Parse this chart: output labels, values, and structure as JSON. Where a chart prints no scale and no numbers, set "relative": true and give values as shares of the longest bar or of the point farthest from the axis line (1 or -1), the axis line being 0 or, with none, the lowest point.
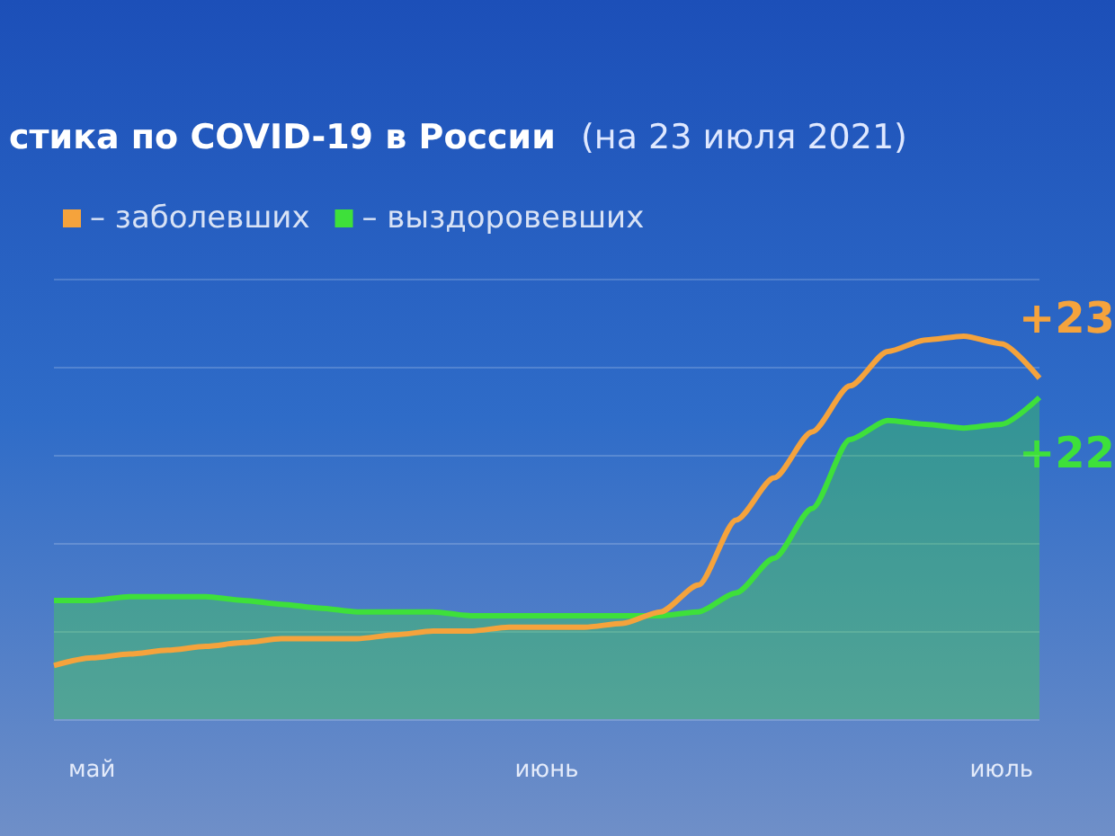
{
  "chart_data": {
    "type": "line",
    "title": "стика по COVID-19 в России",
    "subtitle": "(на 23 июля 2021)",
    "relative": true,
    "grid": "y",
    "legend": "top left",
    "categories": [
      null,
      "май",
      null,
      null,
      null,
      null,
      null,
      null,
      null,
      null,
      null,
      null,
      null,
      "июнь",
      null,
      null,
      null,
      null,
      null,
      null,
      null,
      null,
      null,
      null,
      null,
      "июль",
      null
    ],
    "series": [
      {
        "name": "– заболевших",
        "type": "line",
        "color": "#f5a33c",
        "values": [
          0.14,
          0.16,
          0.17,
          0.18,
          0.19,
          0.2,
          0.21,
          0.21,
          0.21,
          0.22,
          0.23,
          0.23,
          0.24,
          0.24,
          0.24,
          0.25,
          0.28,
          0.35,
          0.52,
          0.63,
          0.75,
          0.87,
          0.96,
          0.99,
          1.0,
          0.98,
          0.89
        ]
      },
      {
        "name": "– выздоровевших",
        "type": "area",
        "color": "#3ee03a",
        "values": [
          0.31,
          0.31,
          0.32,
          0.32,
          0.32,
          0.31,
          0.3,
          0.29,
          0.28,
          0.28,
          0.28,
          0.27,
          0.27,
          0.27,
          0.27,
          0.27,
          0.27,
          0.28,
          0.33,
          0.42,
          0.55,
          0.73,
          0.78,
          0.77,
          0.76,
          0.77,
          0.84
        ]
      }
    ],
    "annotations": [
      "+23",
      "+22"
    ]
  }
}
